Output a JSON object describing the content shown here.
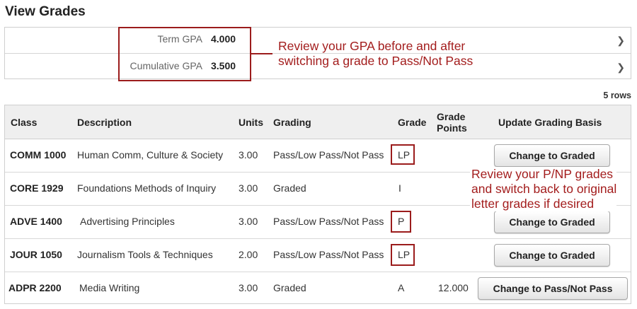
{
  "page": {
    "title": "View Grades"
  },
  "gpa": {
    "term_label": "Term GPA",
    "term_value": "4.000",
    "cumulative_label": "Cumulative GPA",
    "cumulative_value": "3.500",
    "chevron": "chevron-right-icon"
  },
  "annotations": {
    "gpa_note_line1": "Review your GPA before and after",
    "gpa_note_line2": "switching a grade to Pass/Not Pass",
    "grade_note_line1": "Review your P/NP grades",
    "grade_note_line2": "and switch back to original",
    "grade_note_line3": "letter grades if desired",
    "color": "#a31d1d"
  },
  "table": {
    "row_count": "5 rows",
    "headers": {
      "class": "Class",
      "description": "Description",
      "units": "Units",
      "grading": "Grading",
      "grade": "Grade",
      "grade_points_1": "Grade",
      "grade_points_2": "Points",
      "update": "Update Grading Basis"
    },
    "rows": [
      {
        "class": "COMM 1000",
        "description": "Human Comm, Culture & Society",
        "units": "3.00",
        "grading": "Pass/Low Pass/Not Pass",
        "grade": "LP",
        "grade_points": "",
        "action": "Change to Graded"
      },
      {
        "class": "CORE 1929",
        "description": "Foundations Methods of Inquiry",
        "units": "3.00",
        "grading": "Graded",
        "grade": "I",
        "grade_points": "",
        "action": ""
      },
      {
        "class": "ADVE 1400",
        "description": "Advertising Principles",
        "units": "3.00",
        "grading": "Pass/Low Pass/Not Pass",
        "grade": "P",
        "grade_points": "",
        "action": "Change to Graded"
      },
      {
        "class": "JOUR 1050",
        "description": "Journalism Tools & Techniques",
        "units": "2.00",
        "grading": "Pass/Low Pass/Not Pass",
        "grade": "LP",
        "grade_points": "",
        "action": "Change to Graded"
      },
      {
        "class": "ADPR 2200",
        "description": "Media Writing",
        "units": "3.00",
        "grading": "Graded",
        "grade": "A",
        "grade_points": "12.000",
        "action": "Change to Pass/Not Pass"
      }
    ]
  }
}
